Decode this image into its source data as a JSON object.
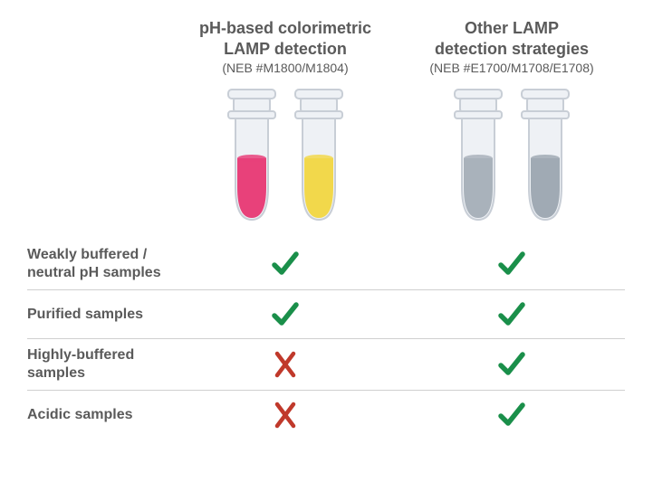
{
  "columns": [
    {
      "title_lines": [
        "pH-based colorimetric",
        "LAMP detection"
      ],
      "subtitle": "(NEB #M1800/M1804)",
      "tube_colors": [
        "#e8417a",
        "#f2d84b"
      ]
    },
    {
      "title_lines": [
        "Other LAMP",
        "detection strategies"
      ],
      "subtitle": "(NEB #E1700/M1708/E1708)",
      "tube_colors": [
        "#a9b2bb",
        "#a0aab4"
      ]
    }
  ],
  "rows": [
    {
      "label_lines": [
        "Weakly buffered /",
        "neutral pH samples"
      ],
      "marks": [
        "check",
        "check"
      ]
    },
    {
      "label_lines": [
        "Purified samples"
      ],
      "marks": [
        "check",
        "check"
      ]
    },
    {
      "label_lines": [
        "Highly-buffered",
        "samples"
      ],
      "marks": [
        "cross",
        "check"
      ]
    },
    {
      "label_lines": [
        "Acidic samples"
      ],
      "marks": [
        "cross",
        "check"
      ]
    }
  ],
  "style": {
    "tube_outline": "#c8ced6",
    "tube_body_fill": "#eef1f5",
    "check_color": "#1a8f4a",
    "cross_color": "#c0392b",
    "header_fontsize": 18,
    "sub_fontsize": 14,
    "row_fontsize": 16,
    "tube_width": 64,
    "tube_height": 150
  }
}
